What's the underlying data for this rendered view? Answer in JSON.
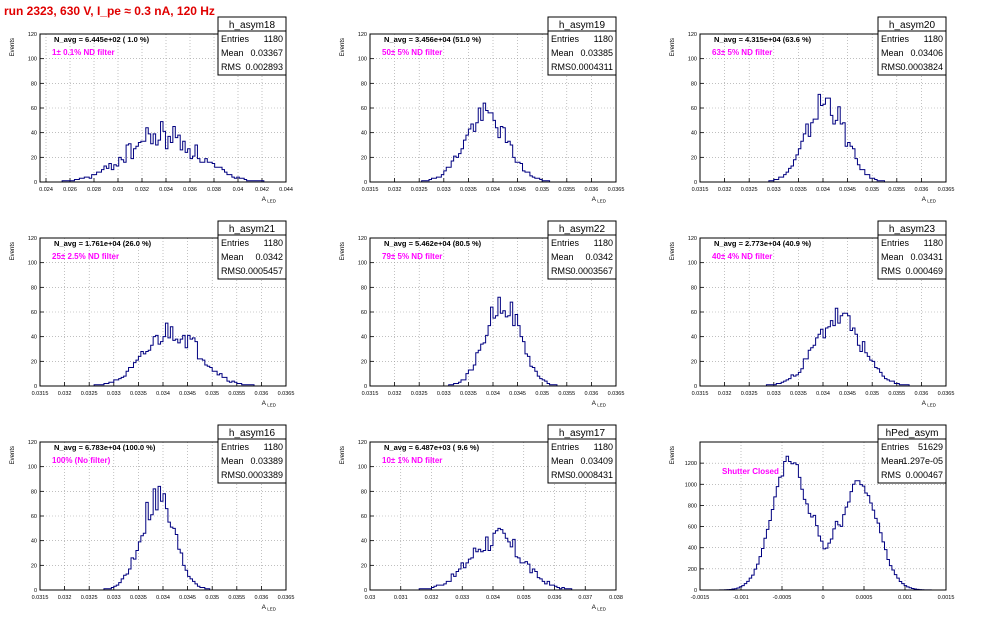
{
  "title": "run 2323,   630 V, I_pe ≈ 0.3 nA, 120 Hz",
  "colors": {
    "title": "#e00000",
    "annotation": "#ff00ff",
    "histogram": "#000080",
    "grid": "#999999"
  },
  "chart_data": [
    {
      "type": "histogram",
      "name": "h_asym18",
      "ylabel": "Events",
      "xlabel": "A_LED",
      "navg": "N_avg = 6.445e+02 ( 1.0 %)",
      "filter": "1± 0.1% ND filter",
      "stats": {
        "Entries": "1180",
        "Mean": "0.03367",
        "RMS": "0.002893"
      },
      "xlim": [
        0.0235,
        0.044
      ],
      "ylim": [
        0,
        120
      ],
      "xticks": [
        "0.024",
        "0.026",
        "0.028",
        "0.03",
        "0.032",
        "0.034",
        "0.036",
        "0.038",
        "0.04",
        "0.042",
        "0.044"
      ],
      "yticks": [
        "0",
        "20",
        "40",
        "60",
        "80",
        "100",
        "120"
      ],
      "mean": 0.03367,
      "sigma": 0.002893,
      "peak": 38,
      "noise": 0.32,
      "seed": 18,
      "nbins": 100
    },
    {
      "type": "histogram",
      "name": "h_asym19",
      "ylabel": "Events",
      "xlabel": "A_LED",
      "navg": "N_avg = 3.456e+04 (51.0 %)",
      "filter": "50± 5% ND filter",
      "stats": {
        "Entries": "1180",
        "Mean": "0.03385",
        "RMS": "0.0004311"
      },
      "xlim": [
        0.0315,
        0.0365
      ],
      "ylim": [
        0,
        120
      ],
      "xticks": [
        "0.0315",
        "0.032",
        "0.0325",
        "0.033",
        "0.0335",
        "0.034",
        "0.0345",
        "0.035",
        "0.0355",
        "0.036",
        "0.0365"
      ],
      "yticks": [
        "0",
        "20",
        "40",
        "60",
        "80",
        "100",
        "120"
      ],
      "mean": 0.03385,
      "sigma": 0.000431,
      "peak": 54,
      "noise": 0.2,
      "seed": 19,
      "nbins": 100
    },
    {
      "type": "histogram",
      "name": "h_asym20",
      "ylabel": "Events",
      "xlabel": "A_LED",
      "navg": "N_avg = 4.315e+04 (63.6 %)",
      "filter": "63± 5% ND filter",
      "stats": {
        "Entries": "1180",
        "Mean": "0.03406",
        "RMS": "0.0003824"
      },
      "xlim": [
        0.0315,
        0.0365
      ],
      "ylim": [
        0,
        120
      ],
      "xticks": [
        "0.0315",
        "0.032",
        "0.0325",
        "0.033",
        "0.0335",
        "0.034",
        "0.0345",
        "0.035",
        "0.0355",
        "0.036",
        "0.0365"
      ],
      "yticks": [
        "0",
        "20",
        "40",
        "60",
        "80",
        "100",
        "120"
      ],
      "mean": 0.03406,
      "sigma": 0.000382,
      "peak": 65,
      "noise": 0.22,
      "seed": 20,
      "nbins": 100
    },
    {
      "type": "histogram",
      "name": "h_asym21",
      "ylabel": "Events",
      "xlabel": "A_LED",
      "navg": "N_avg = 1.761e+04 (26.0 %)",
      "filter": "25± 2.5% ND filter",
      "stats": {
        "Entries": "1180",
        "Mean": "0.0342",
        "RMS": "0.0005457"
      },
      "xlim": [
        0.0315,
        0.0365
      ],
      "ylim": [
        0,
        120
      ],
      "xticks": [
        "0.0315",
        "0.032",
        "0.0325",
        "0.033",
        "0.0335",
        "0.034",
        "0.0345",
        "0.035",
        "0.0355",
        "0.036",
        "0.0365"
      ],
      "yticks": [
        "0",
        "20",
        "40",
        "60",
        "80",
        "100",
        "120"
      ],
      "mean": 0.0342,
      "sigma": 0.000546,
      "peak": 45,
      "noise": 0.22,
      "seed": 21,
      "nbins": 100
    },
    {
      "type": "histogram",
      "name": "h_asym22",
      "ylabel": "Events",
      "xlabel": "A_LED",
      "navg": "N_avg = 5.462e+04 (80.5 %)",
      "filter": "79± 5% ND filter",
      "stats": {
        "Entries": "1180",
        "Mean": "0.0342",
        "RMS": "0.0003567"
      },
      "xlim": [
        0.0315,
        0.0365
      ],
      "ylim": [
        0,
        120
      ],
      "xticks": [
        "0.0315",
        "0.032",
        "0.0325",
        "0.033",
        "0.0335",
        "0.034",
        "0.0345",
        "0.035",
        "0.0355",
        "0.036",
        "0.0365"
      ],
      "yticks": [
        "0",
        "20",
        "40",
        "60",
        "80",
        "100",
        "120"
      ],
      "mean": 0.0342,
      "sigma": 0.000357,
      "peak": 68,
      "noise": 0.16,
      "seed": 22,
      "nbins": 100
    },
    {
      "type": "histogram",
      "name": "h_asym23",
      "ylabel": "Events",
      "xlabel": "A_LED",
      "navg": "N_avg = 2.773e+04 (40.9 %)",
      "filter": "40± 4% ND filter",
      "stats": {
        "Entries": "1180",
        "Mean": "0.03431",
        "RMS": "0.000469"
      },
      "xlim": [
        0.0315,
        0.0365
      ],
      "ylim": [
        0,
        120
      ],
      "xticks": [
        "0.0315",
        "0.032",
        "0.0325",
        "0.033",
        "0.0335",
        "0.034",
        "0.0345",
        "0.035",
        "0.0355",
        "0.036",
        "0.0365"
      ],
      "yticks": [
        "0",
        "20",
        "40",
        "60",
        "80",
        "100",
        "120"
      ],
      "mean": 0.03431,
      "sigma": 0.000469,
      "peak": 55,
      "noise": 0.2,
      "seed": 23,
      "nbins": 100
    },
    {
      "type": "histogram",
      "name": "h_asym16",
      "ylabel": "Events",
      "xlabel": "A_LED",
      "navg": "N_avg = 6.783e+04 (100.0 %)",
      "filter": "100% (No filter)",
      "stats": {
        "Entries": "1180",
        "Mean": "0.03389",
        "RMS": "0.0003389"
      },
      "xlim": [
        0.0315,
        0.0365
      ],
      "ylim": [
        0,
        120
      ],
      "xticks": [
        "0.0315",
        "0.032",
        "0.0325",
        "0.033",
        "0.0335",
        "0.034",
        "0.0345",
        "0.035",
        "0.0355",
        "0.036",
        "0.0365"
      ],
      "yticks": [
        "0",
        "20",
        "40",
        "60",
        "80",
        "100",
        "120"
      ],
      "mean": 0.03389,
      "sigma": 0.000339,
      "peak": 75,
      "noise": 0.2,
      "seed": 16,
      "nbins": 100
    },
    {
      "type": "histogram",
      "name": "h_asym17",
      "ylabel": "Events",
      "xlabel": "A_LED",
      "navg": "N_avg = 6.487e+03 ( 9.6 %)",
      "filter": "10± 1% ND filter",
      "stats": {
        "Entries": "1180",
        "Mean": "0.03409",
        "RMS": "0.0008431"
      },
      "xlim": [
        0.03,
        0.038
      ],
      "ylim": [
        0,
        120
      ],
      "xticks": [
        "0.03",
        "0.031",
        "0.032",
        "0.033",
        "0.034",
        "0.035",
        "0.036",
        "0.037",
        "0.038"
      ],
      "yticks": [
        "0",
        "20",
        "40",
        "60",
        "80",
        "100",
        "120"
      ],
      "mean": 0.03409,
      "sigma": 0.000843,
      "peak": 42,
      "noise": 0.25,
      "seed": 17,
      "nbins": 100
    },
    {
      "type": "histogram",
      "name": "hPed_asym",
      "ylabel": "Events",
      "xlabel": "",
      "navg": "",
      "filter": "Shutter Closed",
      "stats": {
        "Entries": "51629",
        "Mean": "-1.297e-05",
        "RMS": "0.000467"
      },
      "xlim": [
        -0.0015,
        0.0015
      ],
      "ylim": [
        0,
        1400
      ],
      "xticks": [
        "-0.0015",
        "-0.001",
        "-0.0005",
        "0",
        "0.0005",
        "0.001",
        "0.0015"
      ],
      "yticks": [
        "0",
        "200",
        "400",
        "600",
        "800",
        "1000",
        "1200"
      ],
      "bimodal": true,
      "peaks": [
        -0.0004,
        0.00045
      ],
      "peakvals": [
        1230,
        1020
      ],
      "sigma": 0.00022,
      "noise": 0.05,
      "seed": 99,
      "nbins": 100
    }
  ]
}
